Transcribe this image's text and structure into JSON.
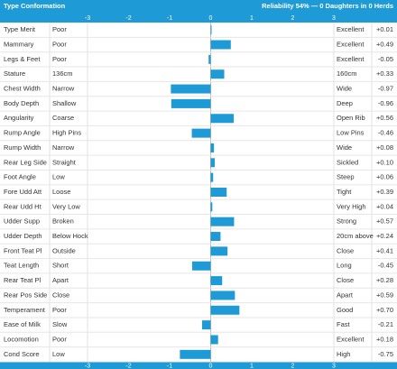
{
  "chart_data": {
    "type": "bar",
    "title": "Type Conformation",
    "subtitle": "Reliability 54% — 0 Daughters in 0 Herds",
    "categories": [
      "Type Merit",
      "Mammary",
      "Legs & Feet",
      "Stature",
      "Chest Width",
      "Body Depth",
      "Angularity",
      "Rump Angle",
      "Rump Width",
      "Rear Leg Side",
      "Foot Angle",
      "Fore Udd Att",
      "Rear Udd Ht",
      "Udder Supp",
      "Udder Depth",
      "Front Teat Pl",
      "Teat Length",
      "Rear Teat Pl",
      "Rear Pos Side",
      "Temperament",
      "Ease of Milk",
      "Locomotion",
      "Cond Score"
    ],
    "low_labels": [
      "Poor",
      "Poor",
      "Poor",
      "136cm",
      "Narrow",
      "Shallow",
      "Coarse",
      "High Pins",
      "Narrow",
      "Straight",
      "Low",
      "Loose",
      "Very Low",
      "Broken",
      "Below Hock",
      "Outside",
      "Short",
      "Apart",
      "Close",
      "Poor",
      "Slow",
      "Poor",
      "Low"
    ],
    "high_labels": [
      "Excellent",
      "Excellent",
      "Excellent",
      "160cm",
      "Wide",
      "Deep",
      "Open Rib",
      "Low Pins",
      "Wide",
      "Sickled",
      "Steep",
      "Tight",
      "Very High",
      "Strong",
      "20cm above",
      "Close",
      "Long",
      "Close",
      "Apart",
      "Good",
      "Fast",
      "Excellent",
      "High"
    ],
    "values": [
      0.01,
      0.49,
      -0.05,
      0.33,
      -0.97,
      -0.96,
      0.56,
      -0.46,
      0.08,
      0.1,
      0.06,
      0.39,
      0.04,
      0.57,
      0.24,
      0.41,
      -0.45,
      0.28,
      0.59,
      0.7,
      -0.21,
      0.18,
      -0.75
    ],
    "value_labels": [
      "+0.01",
      "+0.49",
      "-0.05",
      "+0.33",
      "-0.97",
      "-0.96",
      "+0.56",
      "-0.46",
      "+0.08",
      "+0.10",
      "+0.06",
      "+0.39",
      "+0.04",
      "+0.57",
      "+0.24",
      "+0.41",
      "-0.45",
      "+0.28",
      "+0.59",
      "+0.70",
      "-0.21",
      "+0.18",
      "-0.75"
    ],
    "color": "#1e9ad6",
    "xlim": [
      -3,
      3
    ],
    "xticks": [
      -3,
      -2,
      -1,
      0,
      1,
      2,
      3
    ]
  }
}
